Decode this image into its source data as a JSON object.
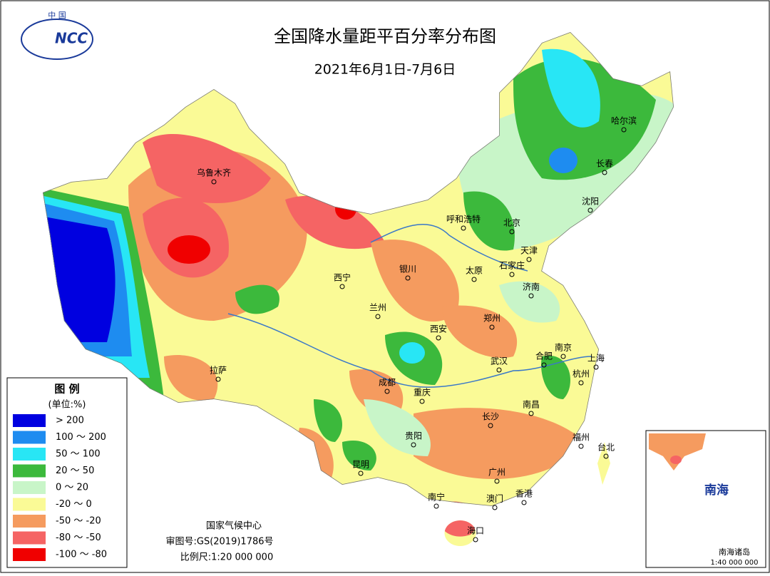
{
  "header": {
    "logo_top": "中 国",
    "logo": "NCC",
    "title": "全国降水量距平百分率分布图",
    "subtitle": "2021年6月1日-7月6日"
  },
  "legend": {
    "title": "图 例",
    "unit": "(单位:%)",
    "items": [
      {
        "label": "> 200",
        "color": "#0000e0"
      },
      {
        "label": "100 ～ 200",
        "color": "#1e8cf0"
      },
      {
        "label": "50 ～ 100",
        "color": "#28e6f5"
      },
      {
        "label": "20 ～ 50",
        "color": "#3cb93c"
      },
      {
        "label": "0 ～ 20",
        "color": "#c8f5c8"
      },
      {
        "label": "-20 ～ 0",
        "color": "#fafa96"
      },
      {
        "label": "-50 ～ -20",
        "color": "#f59b5f"
      },
      {
        "label": "-80 ～ -50",
        "color": "#f56464"
      },
      {
        "label": "-100 ～ -80",
        "color": "#f00000"
      }
    ]
  },
  "credits": {
    "agency": "国家气候中心",
    "approval": "审图号:GS(2019)1786号",
    "scale": "比例尺:1:20 000 000"
  },
  "cities": [
    "乌鲁木齐",
    "哈尔滨",
    "长春",
    "沈阳",
    "呼和浩特",
    "北京",
    "天津",
    "石家庄",
    "太原",
    "银川",
    "西宁",
    "济南",
    "兰州",
    "郑州",
    "西安",
    "南京",
    "合肥",
    "上海",
    "武汉",
    "杭州",
    "拉萨",
    "成都",
    "重庆",
    "南昌",
    "长沙",
    "贵阳",
    "福州",
    "台北",
    "昆明",
    "广州",
    "南宁",
    "澳门",
    "香港",
    "海口"
  ],
  "inset": {
    "sea": "南海",
    "islands": "南海诸岛",
    "scale": "1:40 000 000"
  }
}
